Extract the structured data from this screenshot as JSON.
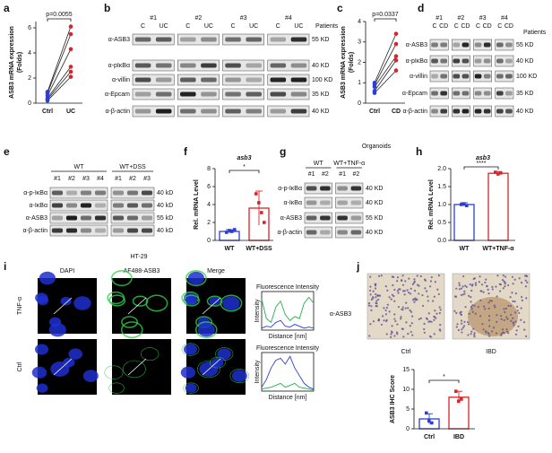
{
  "panel_labels": [
    "a",
    "b",
    "c",
    "d",
    "e",
    "f",
    "g",
    "h",
    "i",
    "j"
  ],
  "chart_data": [
    {
      "type": "paired",
      "ylabel": [
        "ASB3 mRNA expression",
        "(Folds)"
      ],
      "categories": [
        "Ctrl",
        "UC"
      ],
      "colors": [
        "#2b3fd6",
        "#d6262b"
      ],
      "values": [
        [
          0.9,
          0.8,
          0.6,
          0.4,
          0.3,
          0.2
        ],
        [
          6.1,
          5.5,
          4.3,
          2.9,
          2.5,
          2.1
        ]
      ],
      "annotation": "p=0.0055",
      "ylim": [
        0,
        6.5
      ],
      "yticks": [
        0,
        2,
        4,
        6
      ]
    },
    {
      "type": "paired",
      "ylabel": [
        "ASB3 mRNA expression",
        "(Folds)"
      ],
      "categories": [
        "Ctrl",
        "CD"
      ],
      "colors": [
        "#2b3fd6",
        "#d6262b"
      ],
      "values": [
        [
          1.0,
          0.9,
          0.8,
          0.6,
          0.5
        ],
        [
          3.4,
          2.9,
          2.3,
          2.1,
          1.6
        ]
      ],
      "annotation": "p=0.0337",
      "ylim": [
        0,
        4
      ],
      "yticks": [
        0,
        1,
        2,
        3,
        4
      ]
    },
    {
      "type": "bar",
      "title": "asb3",
      "ylabel": "Rel. mRNA Level",
      "categories": [
        "WT",
        "WT+DSS"
      ],
      "colors": [
        "#2b3fd6",
        "#d6262b"
      ],
      "values": [
        1.0,
        3.6
      ],
      "errors": [
        0.2,
        1.9
      ],
      "points": [
        [
          0.9,
          1.1,
          1.0,
          1.2
        ],
        [
          5.2,
          4.2,
          3.1,
          2.0
        ]
      ],
      "significance": "*",
      "ylim": [
        0,
        8
      ],
      "yticks": [
        0,
        2,
        4,
        6,
        8
      ]
    },
    {
      "type": "bar",
      "title": "asb3",
      "ylabel": "Rel. mRNA Level",
      "categories": [
        "WT",
        "WT+TNF-α"
      ],
      "colors": [
        "#2b3fd6",
        "#d6262b"
      ],
      "values": [
        1.0,
        1.87
      ],
      "errors": [
        0.05,
        0.05
      ],
      "points": [
        [
          1.0,
          1.02,
          0.97
        ],
        [
          1.9,
          1.85,
          1.88
        ]
      ],
      "significance": "****",
      "ylim": [
        0,
        2
      ],
      "yticks": [
        {
          "value": 0,
          "label": "0.0"
        },
        0.5,
        {
          "value": 1,
          "label": "1.0"
        },
        1.5,
        {
          "value": 2,
          "label": "2.0"
        }
      ]
    },
    {
      "type": "line",
      "title": "Fluorescence Intensity",
      "xlabel": "Distance [nm]",
      "ylabel": "Intensity",
      "x": [
        0,
        200,
        400,
        600,
        800,
        1000,
        1200,
        1400,
        1600,
        1800,
        2000,
        2200
      ],
      "series": [
        {
          "color": "#22b14c",
          "values": [
            80,
            30,
            20,
            60,
            75,
            40,
            25,
            35,
            30,
            70,
            85,
            70
          ]
        },
        {
          "color": "#2b3fd6",
          "values": [
            5,
            10,
            8,
            20,
            25,
            10,
            8,
            15,
            10,
            5,
            8,
            5
          ]
        }
      ],
      "xlim": [
        0,
        2200
      ],
      "ylim": [
        0,
        100
      ]
    },
    {
      "type": "line",
      "title": "Fluorescence Intensity",
      "xlabel": "Distance [nm]",
      "ylabel": "Intensity",
      "x": [
        0,
        200,
        400,
        600,
        800,
        1000,
        1200,
        1400,
        1600,
        1800,
        2000,
        2200
      ],
      "series": [
        {
          "color": "#2b3fd6",
          "values": [
            10,
            30,
            60,
            80,
            85,
            70,
            90,
            60,
            40,
            20,
            10,
            5
          ]
        },
        {
          "color": "#22b14c",
          "values": [
            5,
            8,
            10,
            15,
            20,
            10,
            15,
            20,
            10,
            8,
            5,
            3
          ]
        }
      ],
      "xlim": [
        0,
        2200
      ],
      "ylim": [
        0,
        100
      ]
    },
    {
      "type": "bar",
      "ylabel": "ASB3 IHC Score",
      "categories": [
        "Ctrl",
        "IBD"
      ],
      "colors": [
        "#2b3fd6",
        "#d6262b"
      ],
      "values": [
        2.5,
        8
      ],
      "errors": [
        1.3,
        1.5
      ],
      "points": [
        [
          4,
          2,
          1.5
        ],
        [
          9.5,
          7,
          7.5
        ]
      ],
      "significance": "*",
      "ylim": [
        0,
        15
      ],
      "yticks": [
        0,
        5,
        10,
        15
      ]
    }
  ],
  "blots": [
    {
      "headers": [
        "#1",
        "#2",
        "#3",
        "#4"
      ],
      "note": "Patients",
      "lanes": [
        "C",
        "UC",
        "C",
        "UC",
        "C",
        "UC",
        "C",
        "UC"
      ],
      "rows": [
        {
          "label": "α-ASB3",
          "size": "55 KD"
        },
        {
          "label": "α-pIκBα",
          "size": "40 KD"
        },
        {
          "label": "α-villin",
          "size": "100 KD"
        },
        {
          "label": "α-Epcam",
          "size": "35 KD"
        },
        {
          "label": "α-β-actin",
          "size": "40 KD"
        }
      ]
    },
    {
      "headers": [
        "#1",
        "#2",
        "#3",
        "#4"
      ],
      "note": "Patients",
      "lanes": [
        "C",
        "CD",
        "C",
        "CD",
        "C",
        "CD",
        "C",
        "CD"
      ],
      "rows": [
        {
          "label": "α-ASB3",
          "size": "55 KD"
        },
        {
          "label": "α-pIκBα",
          "size": "40 KD"
        },
        {
          "label": "α-villin",
          "size": "100 KD"
        },
        {
          "label": "α-Epcam",
          "size": "35 KD"
        },
        {
          "label": "α-β-actin",
          "size": "40 KD"
        }
      ]
    },
    {
      "headers": [
        "WT",
        "WT+DSS"
      ],
      "lanes": [
        "#1",
        "#2",
        "#3",
        "#4",
        "#1",
        "#2",
        "#3"
      ],
      "rows": [
        {
          "label": "α-p-IκBα",
          "size": "40 kD"
        },
        {
          "label": "α-IκBα",
          "size": "40 kD"
        },
        {
          "label": "α-ASB3",
          "size": "55 kD"
        },
        {
          "label": "α-β-actin",
          "size": "40 kD"
        }
      ]
    },
    {
      "title": "Organoids",
      "headers": [
        "WT",
        "WT+TNF-α"
      ],
      "lanes": [
        "#1",
        "#2",
        "#1",
        "#2"
      ],
      "rows": [
        {
          "label": "α-p-IκBα",
          "size": "40 KD"
        },
        {
          "label": "α-IκBα",
          "size": "40 KD"
        },
        {
          "label": "α-ASB3",
          "size": "55 KD"
        },
        {
          "label": "α-β-actin",
          "size": "40 KD"
        }
      ]
    }
  ],
  "microscopy": {
    "title": "HT-29",
    "channels": [
      "DAPI",
      "AF488-ASB3",
      "Merge"
    ],
    "channel_colors": [
      "#2b3fd6",
      "#22b14c",
      "#e0a000"
    ],
    "conditions": [
      "TNF-α",
      "Ctrl"
    ]
  },
  "ihc": {
    "stain": "α-ASB3",
    "groups": [
      "Ctrl",
      "IBD"
    ]
  }
}
